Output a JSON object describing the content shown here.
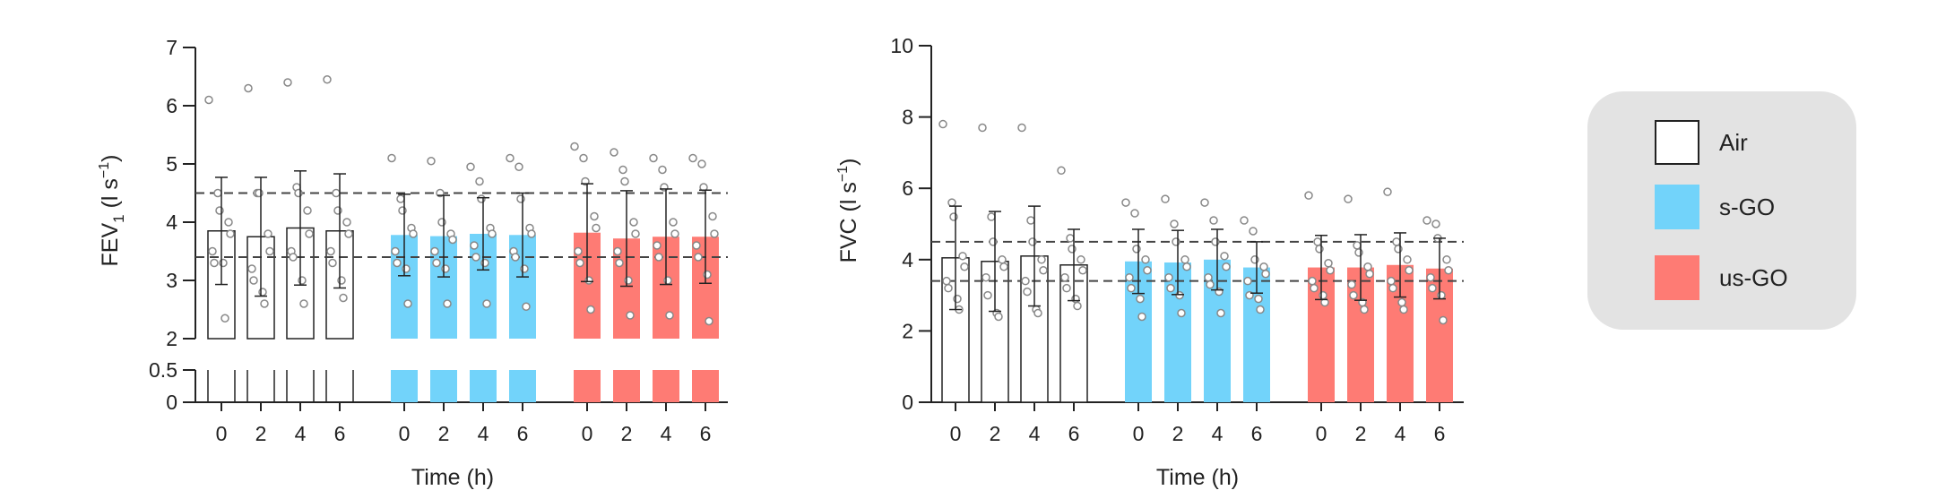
{
  "chart_data": [
    {
      "type": "bar",
      "ylabel": "FEV",
      "ylabel_sub": "1",
      "ylabel_unit_open": " (l s",
      "ylabel_unit_sup": "−1",
      "ylabel_unit_close": ")",
      "xlabel": "Time (h)",
      "ylim": [
        0,
        7
      ],
      "axis_break": [
        0.5,
        2
      ],
      "yticks_lower": [
        0,
        0.5
      ],
      "yticks_upper": [
        2,
        3,
        4,
        5,
        6,
        7
      ],
      "ref_lines": [
        4.5,
        3.4
      ],
      "groups": [
        {
          "name": "Air",
          "x": [
            "0",
            "2",
            "4",
            "6"
          ],
          "values": [
            3.85,
            3.75,
            3.9,
            3.85
          ],
          "err": [
            0.92,
            1.02,
            0.98,
            0.98
          ],
          "points": [
            [
              6.1,
              4.5,
              4.2,
              4.0,
              3.8,
              3.5,
              3.3,
              3.3,
              2.35
            ],
            [
              6.3,
              4.5,
              4.5,
              3.8,
              3.5,
              3.2,
              3.0,
              2.8,
              2.6
            ],
            [
              6.4,
              4.6,
              4.5,
              4.2,
              3.8,
              3.5,
              3.4,
              3.0,
              2.6
            ],
            [
              6.45,
              4.5,
              4.2,
              4.0,
              3.8,
              3.5,
              3.3,
              3.0,
              2.7
            ]
          ]
        },
        {
          "name": "s-GO",
          "x": [
            "0",
            "2",
            "4",
            "6"
          ],
          "values": [
            3.78,
            3.76,
            3.8,
            3.78
          ],
          "err": [
            0.7,
            0.7,
            0.62,
            0.72
          ],
          "points": [
            [
              5.1,
              4.4,
              4.2,
              3.9,
              3.8,
              3.5,
              3.3,
              3.2,
              2.6
            ],
            [
              5.05,
              4.5,
              4.0,
              3.8,
              3.7,
              3.5,
              3.3,
              3.2,
              2.6
            ],
            [
              4.95,
              4.7,
              4.4,
              3.9,
              3.8,
              3.6,
              3.4,
              3.3,
              2.6
            ],
            [
              5.1,
              4.95,
              4.4,
              3.9,
              3.8,
              3.5,
              3.4,
              3.2,
              2.55
            ]
          ]
        },
        {
          "name": "us-GO",
          "x": [
            "0",
            "2",
            "4",
            "6"
          ],
          "values": [
            3.82,
            3.72,
            3.75,
            3.75
          ],
          "err": [
            0.84,
            0.82,
            0.82,
            0.8
          ],
          "points": [
            [
              5.3,
              5.1,
              4.7,
              4.1,
              3.9,
              3.5,
              3.3,
              3.0,
              2.5
            ],
            [
              5.2,
              4.9,
              4.7,
              4.0,
              3.8,
              3.5,
              3.3,
              3.0,
              2.4
            ],
            [
              5.1,
              4.9,
              4.6,
              4.0,
              3.8,
              3.6,
              3.4,
              3.0,
              2.4
            ],
            [
              5.1,
              5.0,
              4.6,
              4.1,
              3.8,
              3.6,
              3.4,
              3.1,
              2.3
            ]
          ]
        }
      ]
    },
    {
      "type": "bar",
      "ylabel": "FVC",
      "ylabel_unit_open": " (l s",
      "ylabel_unit_sup": "−1",
      "ylabel_unit_close": ")",
      "xlabel": "Time (h)",
      "ylim": [
        0,
        10
      ],
      "yticks": [
        0,
        2,
        4,
        6,
        8,
        10
      ],
      "ref_lines": [
        4.5,
        3.4
      ],
      "groups": [
        {
          "name": "Air",
          "x": [
            "0",
            "2",
            "4",
            "6"
          ],
          "values": [
            4.05,
            3.95,
            4.1,
            3.85
          ],
          "err": [
            1.45,
            1.4,
            1.4,
            1.0
          ],
          "points": [
            [
              7.8,
              5.6,
              5.2,
              4.1,
              3.8,
              3.4,
              3.2,
              2.9,
              2.6
            ],
            [
              7.7,
              5.2,
              4.5,
              4.0,
              3.8,
              3.5,
              3.0,
              2.5,
              2.4
            ],
            [
              7.7,
              5.1,
              4.5,
              4.0,
              3.7,
              3.4,
              3.1,
              2.6,
              2.5
            ],
            [
              6.5,
              4.6,
              4.3,
              4.0,
              3.7,
              3.5,
              3.2,
              2.9,
              2.7
            ]
          ]
        },
        {
          "name": "s-GO",
          "x": [
            "0",
            "2",
            "4",
            "6"
          ],
          "values": [
            3.95,
            3.92,
            4.0,
            3.78
          ],
          "err": [
            0.9,
            0.9,
            0.85,
            0.72
          ],
          "points": [
            [
              5.6,
              5.3,
              4.3,
              4.0,
              3.7,
              3.5,
              3.2,
              2.9,
              2.4
            ],
            [
              5.7,
              5.0,
              4.5,
              4.0,
              3.8,
              3.5,
              3.2,
              3.0,
              2.5
            ],
            [
              5.6,
              5.1,
              4.5,
              4.1,
              3.8,
              3.5,
              3.3,
              3.1,
              2.5
            ],
            [
              5.1,
              4.8,
              4.0,
              3.8,
              3.6,
              3.4,
              3.0,
              2.9,
              2.6
            ]
          ]
        },
        {
          "name": "us-GO",
          "x": [
            "0",
            "2",
            "4",
            "6"
          ],
          "values": [
            3.78,
            3.78,
            3.85,
            3.75
          ],
          "err": [
            0.9,
            0.92,
            0.9,
            0.85
          ],
          "points": [
            [
              5.8,
              4.5,
              4.3,
              3.9,
              3.7,
              3.4,
              3.2,
              3.0,
              2.8
            ],
            [
              5.7,
              4.4,
              4.2,
              3.8,
              3.6,
              3.3,
              3.0,
              2.8,
              2.6
            ],
            [
              5.9,
              4.5,
              4.3,
              4.0,
              3.7,
              3.4,
              3.2,
              2.8,
              2.6
            ],
            [
              5.1,
              5.0,
              4.6,
              4.0,
              3.7,
              3.5,
              3.2,
              3.0,
              2.3
            ]
          ]
        }
      ]
    }
  ],
  "legend": {
    "items": [
      {
        "label": "Air",
        "fill": "#ffffff",
        "stroke": "#222222"
      },
      {
        "label": "s-GO",
        "fill": "#72d3fa",
        "stroke": "#72d3fa"
      },
      {
        "label": "us-GO",
        "fill": "#fe7b74",
        "stroke": "#fe7b74"
      }
    ]
  },
  "colors": {
    "Air": "#ffffff",
    "s-GO": "#72d3fa",
    "us-GO": "#fe7b74",
    "axis": "#222222",
    "points": "#888888"
  }
}
